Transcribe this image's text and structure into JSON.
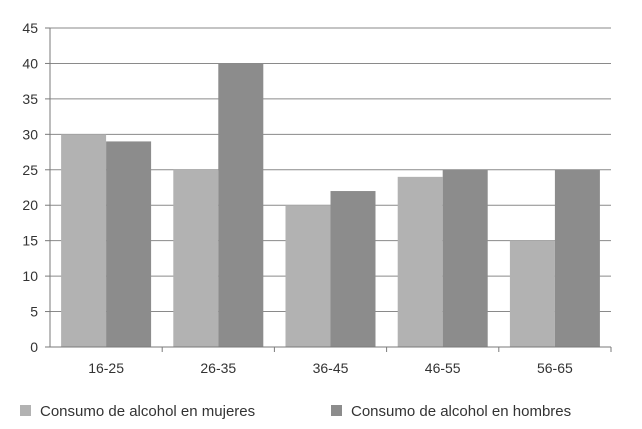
{
  "chart_data": {
    "type": "bar",
    "categories": [
      "16-25",
      "26-35",
      "36-45",
      "46-55",
      "56-65"
    ],
    "series": [
      {
        "name": "Consumo de alcohol en mujeres",
        "values": [
          30,
          25,
          20,
          24,
          15
        ],
        "color": "#b2b2b2"
      },
      {
        "name": "Consumo de alcohol en hombres",
        "values": [
          29,
          40,
          22,
          25,
          25
        ],
        "color": "#8c8c8c"
      }
    ],
    "title": "",
    "xlabel": "",
    "ylabel": "",
    "ylim": [
      0,
      45
    ],
    "yticks": [
      0,
      5,
      10,
      15,
      20,
      25,
      30,
      35,
      40,
      45
    ],
    "grid": true,
    "legend_position": "bottom"
  }
}
